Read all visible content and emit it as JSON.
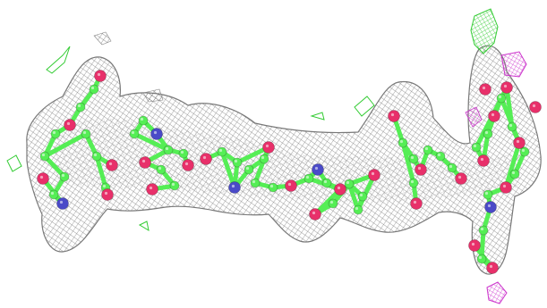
{
  "image": {
    "kind": "molecular-structure-render",
    "background": "#ffffff"
  },
  "colors": {
    "mesh": "#6e6e6e",
    "carbon": "#55ee55",
    "oxygen": "#e8306a",
    "nitrogen": "#4a4ac8",
    "mesh_diff": "#cc33cc",
    "mesh_stray": "#33cc33"
  },
  "icons": [
    "electron-density-mesh",
    "ball-and-stick-model"
  ]
}
